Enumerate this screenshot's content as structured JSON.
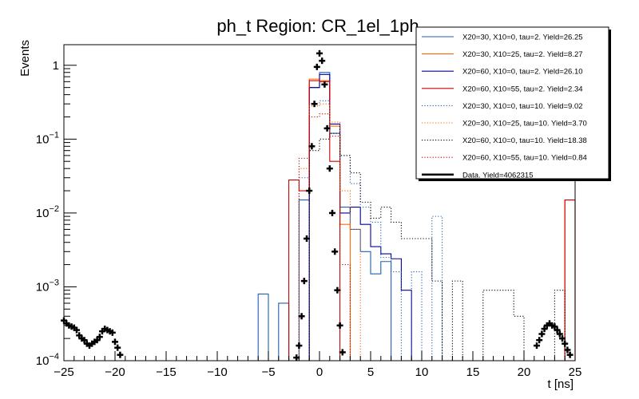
{
  "chart_data": {
    "type": "histogram",
    "title": "ph_t Region: CR_1el_1ph",
    "xlabel": "t [ns]",
    "ylabel": "Events",
    "xlim": [
      -25,
      25
    ],
    "ylim": [
      0.0001,
      1.9
    ],
    "yscale": "log",
    "x_ticks": [
      {
        "value": -25,
        "label": "−25"
      },
      {
        "value": -20,
        "label": "−20"
      },
      {
        "value": -15,
        "label": "−15"
      },
      {
        "value": -10,
        "label": "−10"
      },
      {
        "value": -5,
        "label": "−5"
      },
      {
        "value": 0,
        "label": "0"
      },
      {
        "value": 5,
        "label": "5"
      },
      {
        "value": 10,
        "label": "10"
      },
      {
        "value": 15,
        "label": "15"
      },
      {
        "value": 20,
        "label": "20"
      },
      {
        "value": 25,
        "label": "25"
      }
    ],
    "y_ticks": [
      {
        "value": 0.0001,
        "base": "10",
        "exp": "−4"
      },
      {
        "value": 0.001,
        "base": "10",
        "exp": "−3"
      },
      {
        "value": 0.01,
        "base": "10",
        "exp": "−2"
      },
      {
        "value": 0.1,
        "base": "10",
        "exp": "−1"
      },
      {
        "value": 1,
        "base": "1",
        "exp": ""
      }
    ],
    "bin_edges": [
      -25,
      -24,
      -23,
      -22,
      -21,
      -20,
      -19,
      -18,
      -17,
      -16,
      -15,
      -14,
      -13,
      -12,
      -11,
      -10,
      -9,
      -8,
      -7,
      -6,
      -5,
      -4,
      -3,
      -2,
      -1,
      0,
      1,
      2,
      3,
      4,
      5,
      6,
      7,
      8,
      9,
      10,
      11,
      12,
      13,
      14,
      15,
      16,
      17,
      18,
      19,
      20,
      21,
      22,
      23,
      24,
      25
    ],
    "legend_position": "top-right",
    "series": [
      {
        "name": "X20=30, X10=0, tau=2. Yield=26.25",
        "color": "#1f5fb4",
        "dash": "solid",
        "bins": {
          "-6": 0.0008,
          "-4": 0.0006,
          "-2": 0.015,
          "-1": 0.5,
          "0": 0.8,
          "1": 0.12,
          "2": 0.012,
          "3": 0.006,
          "4": 0.003,
          "5": 0.0015,
          "6": 0.0022
        }
      },
      {
        "name": "X20=30, X10=25, tau=2. Yield=8.27",
        "color": "#ff6600",
        "dash": "solid",
        "bins": {
          "-1": 0.65,
          "0": 0.62,
          "1": 0.15,
          "2": 0.007,
          "24": 0.015
        }
      },
      {
        "name": "X20=60, X10=0, tau=2. Yield=26.10",
        "color": "#000099",
        "dash": "solid",
        "bins": {
          "-1": 0.5,
          "0": 0.75,
          "1": 0.16,
          "2": 0.01,
          "3": 0.012,
          "4": 0.007,
          "5": 0.0035,
          "6": 0.0028,
          "7": 0.0024,
          "8": 0.0009
        }
      },
      {
        "name": "X20=60, X10=55, tau=2. Yield=2.34",
        "color": "#cc0000",
        "dash": "solid",
        "bins": {
          "-3": 0.028,
          "-2": 0.02,
          "-1": 0.62,
          "0": 0.6,
          "1": 0.05,
          "24": 0.015
        }
      },
      {
        "name": "X20=30, X10=0, tau=10. Yield=9.02",
        "color": "#1f5fb4",
        "dash": "dotted",
        "bins": {
          "-2": 0.03,
          "-1": 0.28,
          "0": 0.33,
          "1": 0.12,
          "2": 0.06,
          "3": 0.025,
          "4": 0.012,
          "5": 0.0075,
          "6": 0.0025,
          "7": 0.0016,
          "9": 0.0016,
          "11": 0.009
        }
      },
      {
        "name": "X20=30, X10=25, tau=10. Yield=3.70",
        "color": "#ff6600",
        "dash": "dotted",
        "bins": {
          "-2": 0.04,
          "-1": 0.28,
          "0": 0.3,
          "1": 0.17,
          "2": 0.02,
          "3": 0.006
        }
      },
      {
        "name": "X20=60, X10=0, tau=10. Yield=18.38",
        "color": "#000000",
        "dash": "dotted",
        "bins": {
          "-1": 0.07,
          "0": 0.1,
          "1": 0.12,
          "2": 0.06,
          "3": 0.035,
          "4": 0.014,
          "5": 0.0085,
          "6": 0.012,
          "7": 0.0075,
          "8": 0.0045,
          "9": 0.0045,
          "10": 0.0045,
          "11": 0.0012,
          "13": 0.0012,
          "16": 0.0009,
          "17": 0.0009,
          "18": 0.0009,
          "19": 0.0004,
          "23": 0.0009
        }
      },
      {
        "name": "X20=60, X10=55, tau=10. Yield=0.84",
        "color": "#cc0000",
        "dash": "dotted",
        "bins": {
          "-2": 0.055,
          "-1": 0.2,
          "0": 0.22,
          "1": 0.11,
          "2": 0.002
        }
      }
    ],
    "data": {
      "name": "Data. Yield=4062315",
      "color": "#000000",
      "points": [
        [
          -25.0,
          0.00035
        ],
        [
          -24.75,
          0.00032
        ],
        [
          -24.5,
          0.0003
        ],
        [
          -24.25,
          0.00029
        ],
        [
          -24.0,
          0.00028
        ],
        [
          -23.75,
          0.00026
        ],
        [
          -23.5,
          0.00022
        ],
        [
          -23.25,
          0.0002
        ],
        [
          -23.0,
          0.00019
        ],
        [
          -22.75,
          0.00017
        ],
        [
          -22.5,
          0.00016
        ],
        [
          -22.25,
          0.00017
        ],
        [
          -22.0,
          0.00018
        ],
        [
          -21.75,
          0.00019
        ],
        [
          -21.5,
          0.00021
        ],
        [
          -21.25,
          0.00025
        ],
        [
          -21.0,
          0.00027
        ],
        [
          -20.75,
          0.00026
        ],
        [
          -20.5,
          0.00025
        ],
        [
          -20.25,
          0.00024
        ],
        [
          -20.0,
          0.00018
        ],
        [
          -19.75,
          0.00015
        ],
        [
          -19.5,
          0.00012
        ],
        [
          -2.25,
          0.00011
        ],
        [
          -2.0,
          0.00016
        ],
        [
          -1.75,
          0.0004
        ],
        [
          -1.5,
          0.0012
        ],
        [
          -1.25,
          0.0045
        ],
        [
          -1.0,
          0.02
        ],
        [
          -0.75,
          0.08
        ],
        [
          -0.5,
          0.3
        ],
        [
          -0.25,
          0.95
        ],
        [
          0.0,
          1.45
        ],
        [
          0.25,
          1.15
        ],
        [
          0.5,
          0.55
        ],
        [
          0.75,
          0.14
        ],
        [
          1.0,
          0.04
        ],
        [
          1.25,
          0.01
        ],
        [
          1.5,
          0.003
        ],
        [
          1.75,
          0.0009
        ],
        [
          2.0,
          0.0003
        ],
        [
          2.25,
          0.00013
        ],
        [
          21.25,
          0.00016
        ],
        [
          21.5,
          0.00019
        ],
        [
          21.75,
          0.00023
        ],
        [
          22.0,
          0.00027
        ],
        [
          22.25,
          0.0003
        ],
        [
          22.5,
          0.00032
        ],
        [
          22.75,
          0.0003
        ],
        [
          23.0,
          0.00029
        ],
        [
          23.25,
          0.00026
        ],
        [
          23.5,
          0.00023
        ],
        [
          23.75,
          0.0002
        ],
        [
          24.0,
          0.00017
        ],
        [
          24.25,
          0.00014
        ],
        [
          24.5,
          0.00012
        ]
      ]
    }
  }
}
